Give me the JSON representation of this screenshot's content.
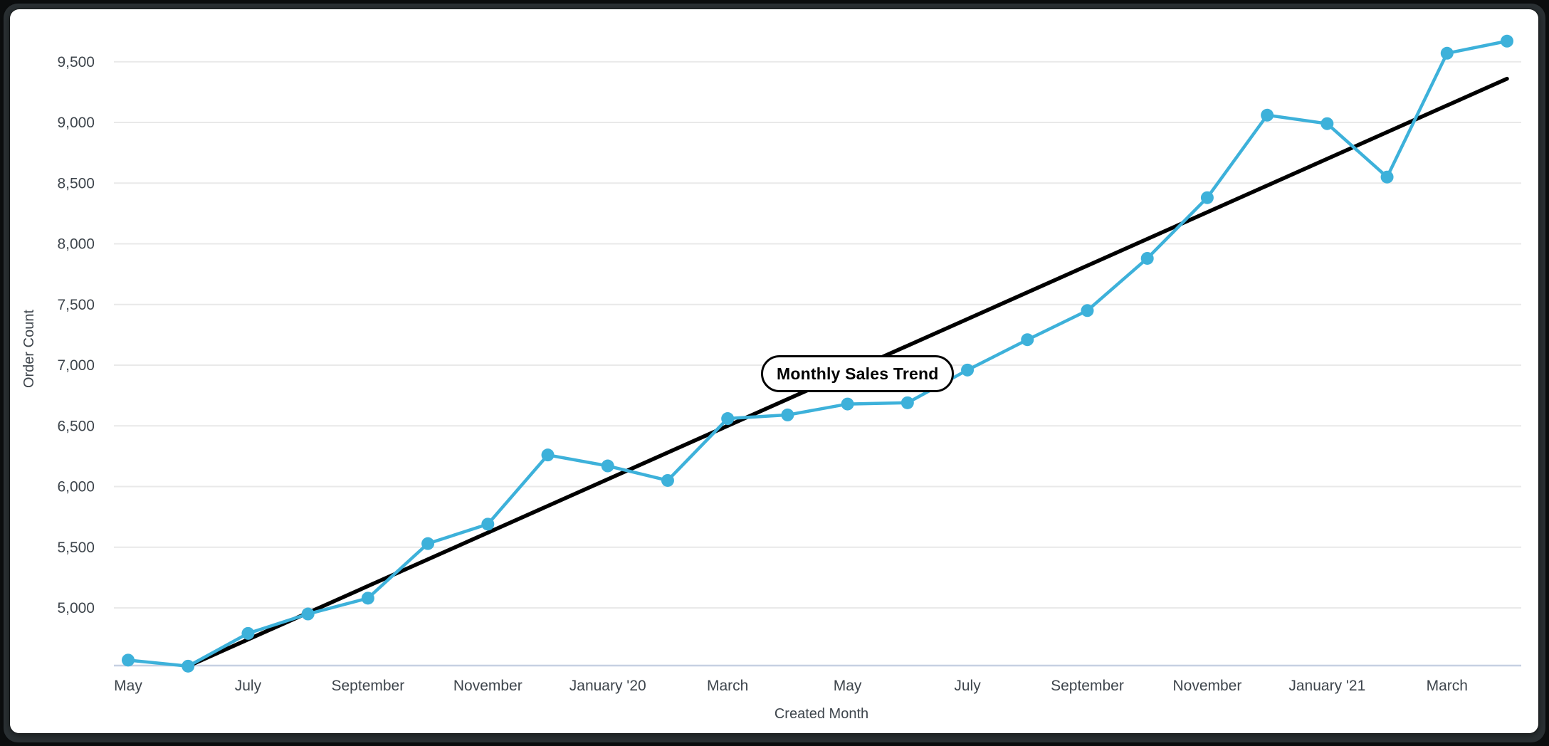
{
  "window": {
    "frame_color": "#2a3033",
    "card_color": "#ffffff"
  },
  "chart_data": {
    "type": "line",
    "annotation_label": "Monthly Sales Trend",
    "xlabel": "Created Month",
    "ylabel": "Order Count",
    "categories": [
      "May '19",
      "Jun '19",
      "Jul '19",
      "Aug '19",
      "Sep '19",
      "Oct '19",
      "Nov '19",
      "Dec '19",
      "Jan '20",
      "Feb '20",
      "Mar '20",
      "Apr '20",
      "May '20",
      "Jun '20",
      "Jul '20",
      "Aug '20",
      "Sep '20",
      "Oct '20",
      "Nov '20",
      "Dec '20",
      "Jan '21",
      "Feb '21",
      "Mar '21",
      "Apr '21"
    ],
    "series": [
      {
        "name": "Order Count",
        "color": "#3db1da",
        "values": [
          4570,
          4520,
          4790,
          4950,
          5080,
          5530,
          5690,
          6260,
          6170,
          6050,
          6560,
          6590,
          6680,
          6690,
          6960,
          7210,
          7450,
          7880,
          8380,
          9060,
          8990,
          8550,
          9570,
          9670
        ]
      }
    ],
    "trend": {
      "name": "linear trend",
      "color": "#000000",
      "start_value": 4300,
      "end_value": 9360
    },
    "x_tick_labels": [
      "May",
      "July",
      "September",
      "November",
      "January '20",
      "March",
      "May",
      "July",
      "September",
      "November",
      "January '21",
      "March"
    ],
    "x_tick_every": 2,
    "y_ticks": [
      5000,
      5500,
      6000,
      6500,
      7000,
      7500,
      8000,
      8500,
      9000,
      9500
    ],
    "ylim": [
      4525,
      9780
    ],
    "grid": true,
    "legend_position": "none",
    "colors": {
      "grid": "#e9e9e9",
      "baseline": "#c6d0e2",
      "tick_text": "#3e454c",
      "axis_title_text": "#3e454c"
    }
  }
}
